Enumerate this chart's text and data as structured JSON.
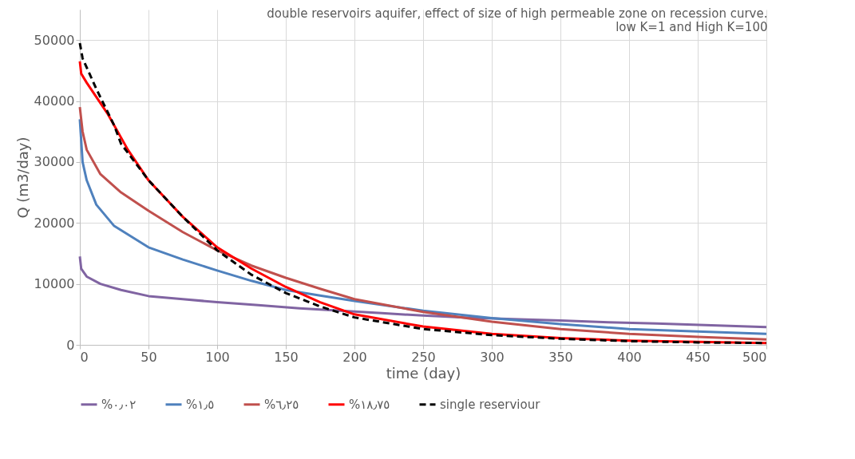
{
  "chart_data": {
    "type": "line",
    "title": [
      "double reservoirs aquifer, effect of size of high permeable zone on recession curve.",
      "low K=1 and High K=100"
    ],
    "xlabel": "time (day)",
    "ylabel": "Q (m3/day)",
    "xlim": [
      0,
      500
    ],
    "xticks": [
      0,
      50,
      100,
      150,
      200,
      250,
      300,
      350,
      400,
      450,
      500
    ],
    "ylim": [
      0,
      55000
    ],
    "yticks": [
      0,
      10000,
      20000,
      30000,
      40000,
      50000
    ],
    "grid": true,
    "legend": "bottom",
    "series": [
      {
        "name": "%٠٫٠٢",
        "color": "#8064a2",
        "line_style": "solid",
        "x": [
          0,
          1,
          5,
          15,
          30,
          50,
          75,
          100,
          130,
          160,
          190,
          220,
          250,
          280,
          320,
          350,
          385,
          420,
          460,
          500
        ],
        "values": [
          14500,
          12500,
          11200,
          10000,
          9000,
          8000,
          7500,
          7000,
          6500,
          6000,
          5600,
          5200,
          4800,
          4500,
          4200,
          4000,
          3700,
          3500,
          3200,
          2900
        ]
      },
      {
        "name": "%١٫٥",
        "color": "#4f81bd",
        "line_style": "solid",
        "x": [
          0,
          2,
          5,
          12,
          25,
          50,
          75,
          100,
          125,
          150,
          175,
          200,
          250,
          300,
          350,
          400,
          450,
          500
        ],
        "values": [
          37000,
          30000,
          27000,
          23000,
          19500,
          16000,
          14000,
          12200,
          10500,
          9000,
          8100,
          7200,
          5600,
          4400,
          3400,
          2600,
          2200,
          1800
        ]
      },
      {
        "name": "%٦٫٢٥",
        "color": "#c0504d",
        "line_style": "solid",
        "x": [
          0,
          2,
          5,
          15,
          30,
          50,
          75,
          100,
          125,
          150,
          175,
          200,
          250,
          300,
          350,
          400,
          450,
          500
        ],
        "values": [
          39000,
          35000,
          32000,
          28000,
          25000,
          22000,
          18500,
          15500,
          13000,
          11000,
          9200,
          7500,
          5400,
          3800,
          2600,
          1800,
          1300,
          900
        ]
      },
      {
        "name": "%١٨٫٧٥",
        "color": "#ff0000",
        "line_style": "solid",
        "x": [
          0,
          1,
          5,
          20,
          35,
          50,
          75,
          100,
          125,
          150,
          175,
          200,
          250,
          300,
          350,
          400,
          450,
          500
        ],
        "values": [
          46500,
          44500,
          43000,
          38000,
          32000,
          27000,
          21000,
          16000,
          12500,
          9500,
          7000,
          5000,
          3000,
          1800,
          1100,
          700,
          500,
          300
        ]
      },
      {
        "name": "single reserviour",
        "color": "#000000",
        "line_style": "dashed",
        "x": [
          0,
          2,
          12,
          25,
          30,
          50,
          75,
          100,
          125,
          150,
          175,
          200,
          250,
          300,
          350,
          400,
          450,
          500
        ],
        "values": [
          49500,
          47000,
          42000,
          36000,
          33000,
          27000,
          21000,
          15500,
          11500,
          8500,
          6300,
          4500,
          2600,
          1600,
          1000,
          600,
          400,
          300
        ]
      }
    ]
  }
}
